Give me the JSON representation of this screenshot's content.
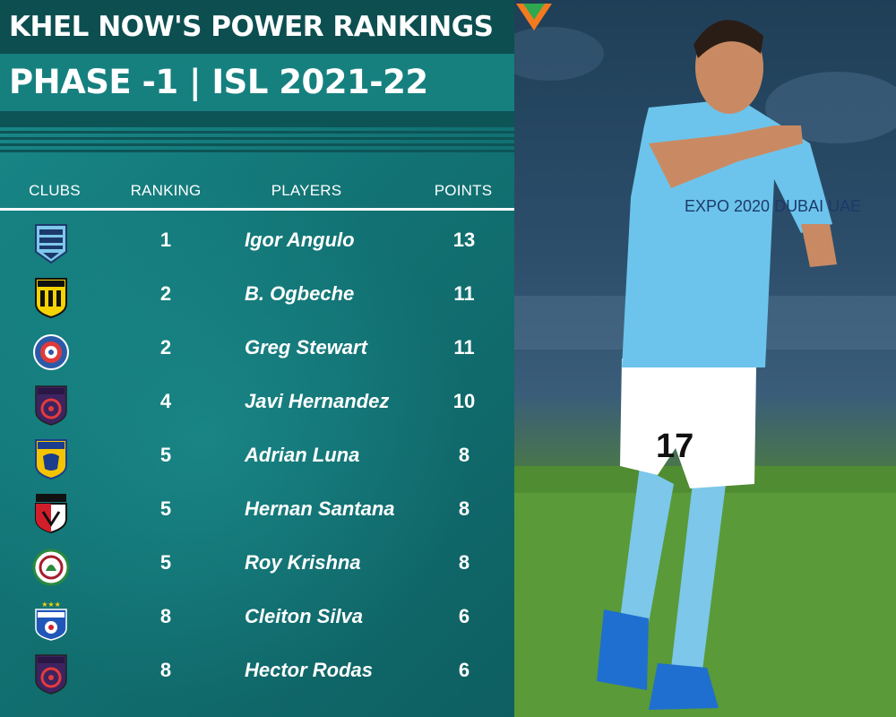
{
  "header": {
    "title": "KHEL NOW'S POWER RANKINGS",
    "subtitle": "PHASE -1  |  ISL 2021-22"
  },
  "table": {
    "columns": [
      "CLUBS",
      "RANKING",
      "PLAYERS",
      "POINTS"
    ],
    "rows": [
      {
        "club": "Mumbai City FC",
        "rank": "1",
        "player": "Igor Angulo",
        "points": "13"
      },
      {
        "club": "Hyderabad FC",
        "rank": "2",
        "player": "B. Ogbeche",
        "points": "11"
      },
      {
        "club": "Jamshedpur FC",
        "rank": "2",
        "player": "Greg Stewart",
        "points": "11"
      },
      {
        "club": "Odisha FC",
        "rank": "4",
        "player": "Javi Hernandez",
        "points": "10"
      },
      {
        "club": "Kerala Blasters",
        "rank": "5",
        "player": "Adrian Luna",
        "points": "8"
      },
      {
        "club": "NorthEast United",
        "rank": "5",
        "player": "Hernan Santana",
        "points": "8"
      },
      {
        "club": "ATK Mohun Bagan",
        "rank": "5",
        "player": "Roy Krishna",
        "points": "8"
      },
      {
        "club": "Bengaluru FC",
        "rank": "8",
        "player": "Cleiton Silva",
        "points": "6"
      },
      {
        "club": "Odisha FC",
        "rank": "8",
        "player": "Hector Rodas",
        "points": "6"
      }
    ]
  },
  "crest_icons": [
    "mumbai-city-crest-icon",
    "hyderabad-crest-icon",
    "jamshedpur-crest-icon",
    "odisha-crest-icon",
    "kerala-blasters-crest-icon",
    "northeast-united-crest-icon",
    "atk-mohun-bagan-crest-icon",
    "bengaluru-crest-icon",
    "odisha-crest-icon"
  ],
  "photo": {
    "jersey_sponsor": "EXPO 2020 DUBAI UAE",
    "jersey_number": "17"
  },
  "brand": {
    "logo_text": "KHEL NOW"
  },
  "colors": {
    "panel_dark": "#0d4e50",
    "panel_teal": "#16807f",
    "jersey_blue": "#6cc4ec",
    "logo_orange": "#f47a20",
    "logo_green": "#2fa84f"
  }
}
